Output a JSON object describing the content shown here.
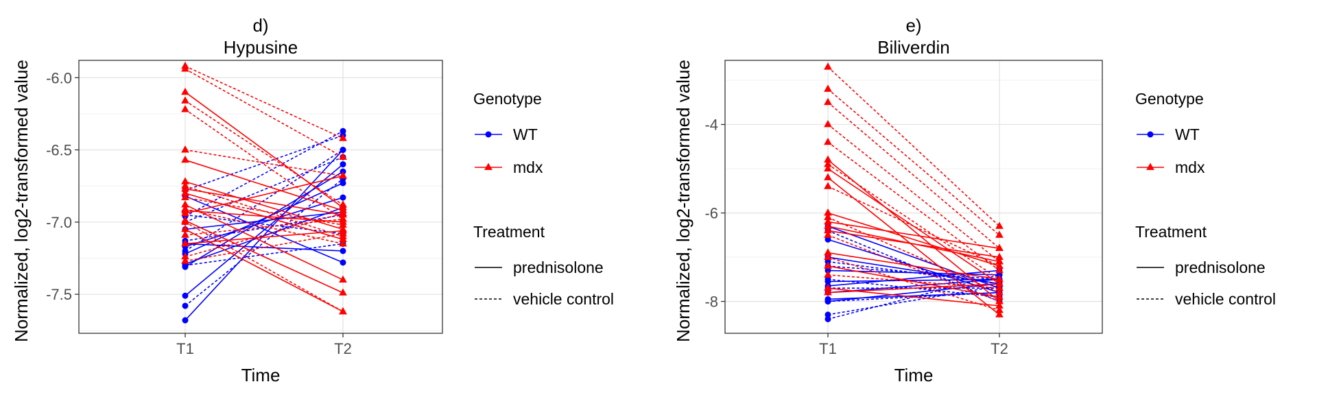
{
  "chart_data": [
    {
      "type": "line",
      "panel_label": "d)",
      "title": "Hypusine",
      "xlabel": "Time",
      "ylabel": "Normalized, log2-transformed value",
      "x": [
        "T1",
        "T2"
      ],
      "ylim": [
        -7.77,
        -5.88
      ],
      "yticks": [
        -6.0,
        -6.5,
        -7.0,
        -7.5
      ],
      "ytick_labels": [
        "-6.0",
        "-6.5",
        "-7.0",
        "-7.5"
      ],
      "grid": true,
      "legend": {
        "placement": "right",
        "genotype_title": "Genotype",
        "genotype_items": [
          {
            "label": "WT",
            "color": "#0000ff",
            "marker": "circle"
          },
          {
            "label": "mdx",
            "color": "#ff0000",
            "marker": "triangle"
          }
        ],
        "treatment_title": "Treatment",
        "treatment_items": [
          {
            "label": "prednisolone",
            "dash": "solid"
          },
          {
            "label": "vehicle control",
            "dash": "dotted"
          }
        ]
      },
      "series": [
        {
          "genotype": "WT",
          "treatment": "prednisolone",
          "values": [
            -7.68,
            -6.5
          ]
        },
        {
          "genotype": "WT",
          "treatment": "prednisolone",
          "values": [
            -7.51,
            -6.6
          ]
        },
        {
          "genotype": "WT",
          "treatment": "prednisolone",
          "values": [
            -7.31,
            -6.65
          ]
        },
        {
          "genotype": "WT",
          "treatment": "prednisolone",
          "values": [
            -7.22,
            -6.73
          ]
        },
        {
          "genotype": "WT",
          "treatment": "prednisolone",
          "values": [
            -7.17,
            -6.83
          ]
        },
        {
          "genotype": "WT",
          "treatment": "prednisolone",
          "values": [
            -7.15,
            -7.2
          ]
        },
        {
          "genotype": "WT",
          "treatment": "prednisolone",
          "values": [
            -7.05,
            -6.93
          ]
        },
        {
          "genotype": "WT",
          "treatment": "prednisolone",
          "values": [
            -6.82,
            -7.28
          ]
        },
        {
          "genotype": "WT",
          "treatment": "prednisolone",
          "values": [
            -7.29,
            -6.9
          ]
        },
        {
          "genotype": "WT",
          "treatment": "vehicle control",
          "values": [
            -7.58,
            -6.7
          ]
        },
        {
          "genotype": "WT",
          "treatment": "vehicle control",
          "values": [
            -7.3,
            -7.15
          ]
        },
        {
          "genotype": "WT",
          "treatment": "vehicle control",
          "values": [
            -7.2,
            -6.5
          ]
        },
        {
          "genotype": "WT",
          "treatment": "vehicle control",
          "values": [
            -7.13,
            -6.95
          ]
        },
        {
          "genotype": "WT",
          "treatment": "vehicle control",
          "values": [
            -7.0,
            -6.55
          ]
        },
        {
          "genotype": "WT",
          "treatment": "vehicle control",
          "values": [
            -6.96,
            -6.37
          ]
        },
        {
          "genotype": "WT",
          "treatment": "vehicle control",
          "values": [
            -6.78,
            -6.4
          ]
        },
        {
          "genotype": "WT",
          "treatment": "vehicle control",
          "values": [
            -6.95,
            -7.08
          ]
        },
        {
          "genotype": "mdx",
          "treatment": "prednisolone",
          "values": [
            -6.1,
            -6.9
          ]
        },
        {
          "genotype": "mdx",
          "treatment": "prednisolone",
          "values": [
            -6.57,
            -6.92
          ]
        },
        {
          "genotype": "mdx",
          "treatment": "prednisolone",
          "values": [
            -6.72,
            -7.05
          ]
        },
        {
          "genotype": "mdx",
          "treatment": "prednisolone",
          "values": [
            -6.77,
            -6.95
          ]
        },
        {
          "genotype": "mdx",
          "treatment": "prednisolone",
          "values": [
            -6.8,
            -7.12
          ]
        },
        {
          "genotype": "mdx",
          "treatment": "prednisolone",
          "values": [
            -6.88,
            -7.4
          ]
        },
        {
          "genotype": "mdx",
          "treatment": "prednisolone",
          "values": [
            -6.94,
            -6.68
          ]
        },
        {
          "genotype": "mdx",
          "treatment": "prednisolone",
          "values": [
            -6.99,
            -7.49
          ]
        },
        {
          "genotype": "mdx",
          "treatment": "prednisolone",
          "values": [
            -7.05,
            -7.62
          ]
        },
        {
          "genotype": "mdx",
          "treatment": "prednisolone",
          "values": [
            -7.15,
            -7.06
          ]
        },
        {
          "genotype": "mdx",
          "treatment": "prednisolone",
          "values": [
            -6.92,
            -7.0
          ]
        },
        {
          "genotype": "mdx",
          "treatment": "vehicle control",
          "values": [
            -5.92,
            -6.42
          ]
        },
        {
          "genotype": "mdx",
          "treatment": "vehicle control",
          "values": [
            -5.94,
            -6.55
          ]
        },
        {
          "genotype": "mdx",
          "treatment": "vehicle control",
          "values": [
            -6.16,
            -6.88
          ]
        },
        {
          "genotype": "mdx",
          "treatment": "vehicle control",
          "values": [
            -6.22,
            -6.98
          ]
        },
        {
          "genotype": "mdx",
          "treatment": "vehicle control",
          "values": [
            -6.5,
            -6.68
          ]
        },
        {
          "genotype": "mdx",
          "treatment": "vehicle control",
          "values": [
            -6.75,
            -7.1
          ]
        },
        {
          "genotype": "mdx",
          "treatment": "vehicle control",
          "values": [
            -6.83,
            -7.02
          ]
        },
        {
          "genotype": "mdx",
          "treatment": "vehicle control",
          "values": [
            -6.91,
            -7.15
          ]
        },
        {
          "genotype": "mdx",
          "treatment": "vehicle control",
          "values": [
            -7.0,
            -7.62
          ]
        },
        {
          "genotype": "mdx",
          "treatment": "vehicle control",
          "values": [
            -7.09,
            -6.98
          ]
        },
        {
          "genotype": "mdx",
          "treatment": "vehicle control",
          "values": [
            -7.24,
            -6.94
          ]
        },
        {
          "genotype": "mdx",
          "treatment": "vehicle control",
          "values": [
            -7.27,
            -7.08
          ]
        }
      ]
    },
    {
      "type": "line",
      "panel_label": "e)",
      "title": "Biliverdin",
      "xlabel": "Time",
      "ylabel": "Normalized, log2-transformed value",
      "x": [
        "T1",
        "T2"
      ],
      "ylim": [
        -8.72,
        -2.55
      ],
      "yticks": [
        -4,
        -6,
        -8
      ],
      "ytick_labels": [
        "-4",
        "-6",
        "-8"
      ],
      "grid": true,
      "legend": {
        "placement": "right",
        "genotype_title": "Genotype",
        "genotype_items": [
          {
            "label": "WT",
            "color": "#0000ff",
            "marker": "circle"
          },
          {
            "label": "mdx",
            "color": "#ff0000",
            "marker": "triangle"
          }
        ],
        "treatment_title": "Treatment",
        "treatment_items": [
          {
            "label": "prednisolone",
            "dash": "solid"
          },
          {
            "label": "vehicle control",
            "dash": "dotted"
          }
        ]
      },
      "series": [
        {
          "genotype": "WT",
          "treatment": "prednisolone",
          "values": [
            -6.3,
            -7.7
          ]
        },
        {
          "genotype": "WT",
          "treatment": "prednisolone",
          "values": [
            -6.6,
            -7.8
          ]
        },
        {
          "genotype": "WT",
          "treatment": "prednisolone",
          "values": [
            -7.0,
            -7.6
          ]
        },
        {
          "genotype": "WT",
          "treatment": "prednisolone",
          "values": [
            -7.3,
            -7.4
          ]
        },
        {
          "genotype": "WT",
          "treatment": "prednisolone",
          "values": [
            -7.55,
            -7.5
          ]
        },
        {
          "genotype": "WT",
          "treatment": "prednisolone",
          "values": [
            -7.65,
            -7.3
          ]
        },
        {
          "genotype": "WT",
          "treatment": "prednisolone",
          "values": [
            -8.0,
            -7.6
          ]
        },
        {
          "genotype": "WT",
          "treatment": "prednisolone",
          "values": [
            -7.95,
            -7.8
          ]
        },
        {
          "genotype": "WT",
          "treatment": "prednisolone",
          "values": [
            -7.8,
            -7.5
          ]
        },
        {
          "genotype": "WT",
          "treatment": "vehicle control",
          "values": [
            -6.4,
            -8.0
          ]
        },
        {
          "genotype": "WT",
          "treatment": "vehicle control",
          "values": [
            -7.1,
            -7.6
          ]
        },
        {
          "genotype": "WT",
          "treatment": "vehicle control",
          "values": [
            -7.2,
            -7.5
          ]
        },
        {
          "genotype": "WT",
          "treatment": "vehicle control",
          "values": [
            -7.5,
            -7.9
          ]
        },
        {
          "genotype": "WT",
          "treatment": "vehicle control",
          "values": [
            -7.7,
            -7.7
          ]
        },
        {
          "genotype": "WT",
          "treatment": "vehicle control",
          "values": [
            -8.0,
            -7.8
          ]
        },
        {
          "genotype": "WT",
          "treatment": "vehicle control",
          "values": [
            -8.3,
            -7.65
          ]
        },
        {
          "genotype": "WT",
          "treatment": "vehicle control",
          "values": [
            -8.4,
            -7.4
          ]
        },
        {
          "genotype": "mdx",
          "treatment": "prednisolone",
          "values": [
            -4.8,
            -8.0
          ]
        },
        {
          "genotype": "mdx",
          "treatment": "prednisolone",
          "values": [
            -5.0,
            -7.6
          ]
        },
        {
          "genotype": "mdx",
          "treatment": "prednisolone",
          "values": [
            -5.2,
            -8.3
          ]
        },
        {
          "genotype": "mdx",
          "treatment": "prednisolone",
          "values": [
            -6.0,
            -7.2
          ]
        },
        {
          "genotype": "mdx",
          "treatment": "prednisolone",
          "values": [
            -6.2,
            -6.8
          ]
        },
        {
          "genotype": "mdx",
          "treatment": "prednisolone",
          "values": [
            -6.3,
            -7.1
          ]
        },
        {
          "genotype": "mdx",
          "treatment": "prednisolone",
          "values": [
            -6.4,
            -7.0
          ]
        },
        {
          "genotype": "mdx",
          "treatment": "prednisolone",
          "values": [
            -6.9,
            -7.5
          ]
        },
        {
          "genotype": "mdx",
          "treatment": "prednisolone",
          "values": [
            -7.2,
            -7.9
          ]
        },
        {
          "genotype": "mdx",
          "treatment": "prednisolone",
          "values": [
            -7.7,
            -8.1
          ]
        },
        {
          "genotype": "mdx",
          "treatment": "prednisolone",
          "values": [
            -7.8,
            -7.6
          ]
        },
        {
          "genotype": "mdx",
          "treatment": "vehicle control",
          "values": [
            -2.7,
            -6.3
          ]
        },
        {
          "genotype": "mdx",
          "treatment": "vehicle control",
          "values": [
            -3.2,
            -6.5
          ]
        },
        {
          "genotype": "mdx",
          "treatment": "vehicle control",
          "values": [
            -3.5,
            -6.8
          ]
        },
        {
          "genotype": "mdx",
          "treatment": "vehicle control",
          "values": [
            -4.0,
            -7.1
          ]
        },
        {
          "genotype": "mdx",
          "treatment": "vehicle control",
          "values": [
            -4.4,
            -7.3
          ]
        },
        {
          "genotype": "mdx",
          "treatment": "vehicle control",
          "values": [
            -4.9,
            -7.5
          ]
        },
        {
          "genotype": "mdx",
          "treatment": "vehicle control",
          "values": [
            -5.4,
            -7.2
          ]
        },
        {
          "genotype": "mdx",
          "treatment": "vehicle control",
          "values": [
            -6.1,
            -7.8
          ]
        },
        {
          "genotype": "mdx",
          "treatment": "vehicle control",
          "values": [
            -6.5,
            -8.0
          ]
        },
        {
          "genotype": "mdx",
          "treatment": "vehicle control",
          "values": [
            -7.0,
            -8.2
          ]
        },
        {
          "genotype": "mdx",
          "treatment": "vehicle control",
          "values": [
            -7.4,
            -7.7
          ]
        }
      ]
    }
  ]
}
